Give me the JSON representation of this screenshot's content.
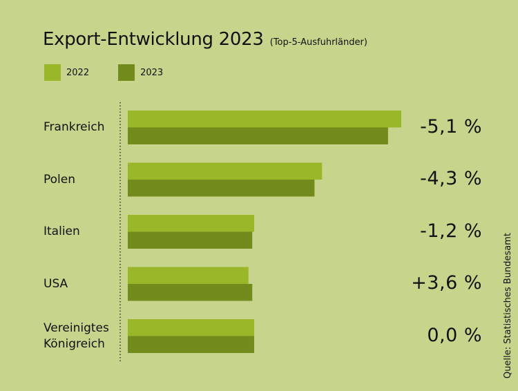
{
  "title": "Export-Entwicklung 2023",
  "subtitle": "(Top-5-Ausfuhrländer)",
  "source": "Quelle: Statistisches Bundesamt",
  "colors": {
    "background": "#c6d48c",
    "series_2022": "#9ab629",
    "series_2023": "#738a1d"
  },
  "chart_data": {
    "type": "bar",
    "orientation": "horizontal",
    "categories": [
      "Frankreich",
      "Polen",
      "Italien",
      "USA",
      "Vereinigtes Königreich"
    ],
    "series": [
      {
        "name": "2022",
        "values": [
          145,
          103,
          67,
          64,
          67
        ]
      },
      {
        "name": "2023",
        "values": [
          138,
          99,
          66,
          66,
          67
        ]
      }
    ],
    "changes": [
      "-5,1 %",
      "-4,3 %",
      "-1,2 %",
      "+3,6 %",
      "0,0 %"
    ],
    "xlim": [
      0,
      145
    ],
    "legend": "top-left",
    "grid": false
  }
}
